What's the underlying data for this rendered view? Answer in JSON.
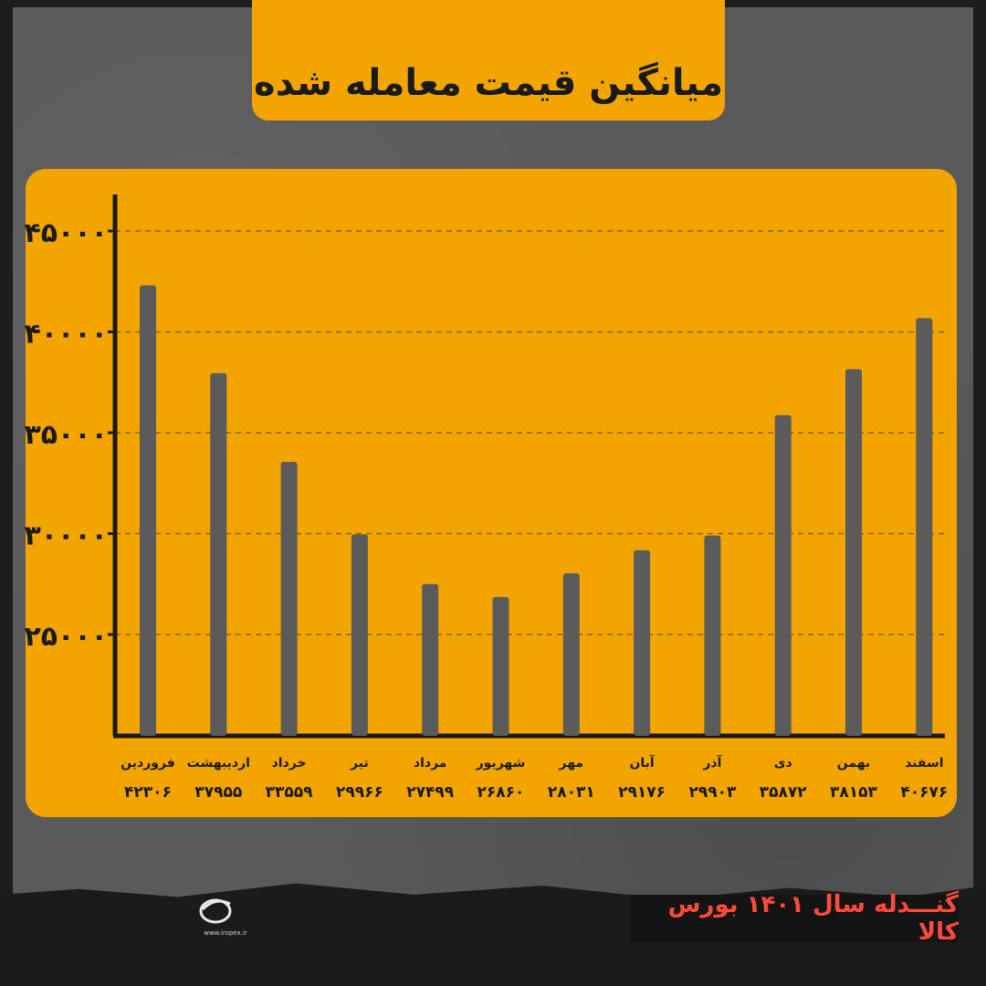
{
  "title": "میانگین قیمت معامله شده",
  "footer": "گنـــدله سال ۱۴۰۱ بورس کالا",
  "logo": {
    "brand": "IROPEX",
    "url": "www.iropex.ir"
  },
  "colors": {
    "accent": "#f2a500",
    "bar": "#5b5b5b",
    "axis": "#1a1a1a",
    "footer_text": "#ff4a3d"
  },
  "chart_data": {
    "type": "bar",
    "categories": [
      "فروردین",
      "اردیبهشت",
      "خرداد",
      "تیر",
      "مرداد",
      "شهریور",
      "مهر",
      "آبان",
      "آذر",
      "دی",
      "بهمن",
      "اسفند"
    ],
    "values": [
      42306,
      37955,
      33559,
      29966,
      27499,
      26860,
      28031,
      29176,
      29903,
      35872,
      38153,
      40676
    ],
    "value_labels": [
      "۴۲۳۰۶",
      "۳۷۹۵۵",
      "۳۳۵۵۹",
      "۲۹۹۶۶",
      "۲۷۴۹۹",
      "۲۶۸۶۰",
      "۲۸۰۳۱",
      "۲۹۱۷۶",
      "۲۹۹۰۳",
      "۳۵۸۷۲",
      "۳۸۱۵۳",
      "۴۰۶۷۶"
    ],
    "yticks": [
      25000,
      30000,
      35000,
      40000,
      45000
    ],
    "ytick_labels": [
      "۲۵۰۰۰",
      "۳۰۰۰۰",
      "۳۵۰۰۰",
      "۴۰۰۰۰",
      "۴۵۰۰۰"
    ],
    "ylim": [
      20000,
      46000
    ],
    "grid": true
  }
}
